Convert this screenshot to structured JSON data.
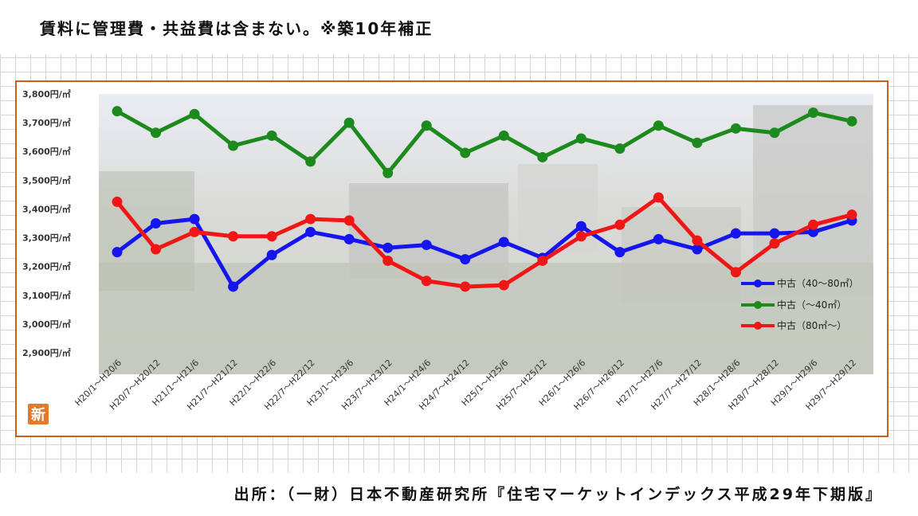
{
  "header": {
    "note": "賃料に管理費・共益費は含まない。※築10年補正"
  },
  "footer": {
    "source": "出所：（一財）日本不動産研究所『住宅マーケットインデックス平成29年下期版』"
  },
  "logo": {
    "text": "新"
  },
  "colors": {
    "frame": "#c8621a",
    "series_blue": "#1515f0",
    "series_green": "#1c8a1c",
    "series_red": "#f01616"
  },
  "chart_data": {
    "type": "line",
    "title": "",
    "xlabel": "",
    "ylabel": "",
    "ylim": [
      2900,
      3800
    ],
    "yticks": [
      {
        "value": 3800,
        "label": "3,800円/㎡"
      },
      {
        "value": 3700,
        "label": "3,700円/㎡"
      },
      {
        "value": 3600,
        "label": "3,600円/㎡"
      },
      {
        "value": 3500,
        "label": "3,500円/㎡"
      },
      {
        "value": 3400,
        "label": "3,400円/㎡"
      },
      {
        "value": 3300,
        "label": "3,300円/㎡"
      },
      {
        "value": 3200,
        "label": "3,200円/㎡"
      },
      {
        "value": 3100,
        "label": "3,100円/㎡"
      },
      {
        "value": 3000,
        "label": "3,000円/㎡"
      },
      {
        "value": 2900,
        "label": "2,900円/㎡"
      }
    ],
    "categories": [
      "H20/1～H20/6",
      "H20/7～H20/12",
      "H21/1～H21/6",
      "H21/7～H21/12",
      "H22/1～H22/6",
      "H22/7～H22/12",
      "H23/1～H23/6",
      "H23/7～H23/12",
      "H24/1～H24/6",
      "H24/7～H24/12",
      "H25/1～H25/6",
      "H25/7～H25/12",
      "H26/1～H26/6",
      "H26/7～H26/12",
      "H27/1～H27/6",
      "H27/7～H27/12",
      "H28/1～H28/6",
      "H28/7～H28/12",
      "H29/1～H29/6",
      "H29/7～H29/12"
    ],
    "legend_position": "right",
    "grid": false,
    "series": [
      {
        "name": "中古（40～80㎡）",
        "color": "#1515f0",
        "values": [
          3250,
          3350,
          3365,
          3130,
          3240,
          3320,
          3295,
          3265,
          3275,
          3225,
          3285,
          3230,
          3340,
          3250,
          3295,
          3260,
          3315,
          3315,
          3320,
          3360
        ]
      },
      {
        "name": "中古（～40㎡）",
        "color": "#1c8a1c",
        "values": [
          3740,
          3665,
          3730,
          3620,
          3655,
          3565,
          3700,
          3525,
          3690,
          3595,
          3655,
          3580,
          3645,
          3610,
          3690,
          3630,
          3680,
          3665,
          3735,
          3705
        ]
      },
      {
        "name": "中古（80㎡～）",
        "color": "#f01616",
        "values": [
          3425,
          3260,
          3320,
          3305,
          3305,
          3365,
          3360,
          3220,
          3150,
          3130,
          3135,
          3220,
          3305,
          3345,
          3440,
          3290,
          3180,
          3280,
          3345,
          3380
        ]
      }
    ]
  }
}
